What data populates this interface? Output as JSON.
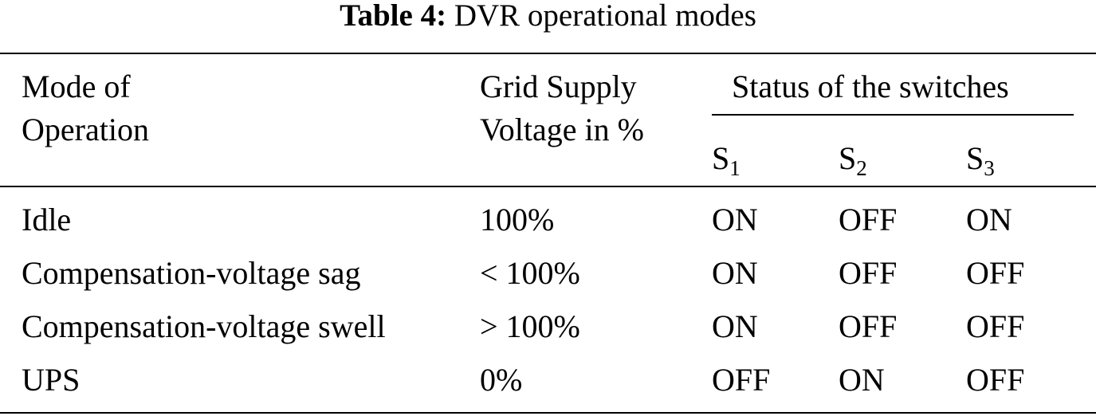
{
  "caption": {
    "label": "Table 4:",
    "text": "DVR operational modes"
  },
  "header": {
    "mode_line1": "Mode of",
    "mode_line2": "Operation",
    "grid_line1": "Grid Supply",
    "grid_line2": "Voltage in %",
    "status_group": "Status of the switches",
    "switches": [
      {
        "base": "S",
        "sub": "1"
      },
      {
        "base": "S",
        "sub": "2"
      },
      {
        "base": "S",
        "sub": "3"
      }
    ]
  },
  "rows": [
    {
      "mode": "Idle",
      "voltage": "100%",
      "s1": "ON",
      "s2": "OFF",
      "s3": "ON"
    },
    {
      "mode": "Compensation-voltage sag",
      "voltage": "< 100%",
      "s1": "ON",
      "s2": "OFF",
      "s3": "OFF"
    },
    {
      "mode": "Compensation-voltage swell",
      "voltage": "> 100%",
      "s1": "ON",
      "s2": "OFF",
      "s3": "OFF"
    },
    {
      "mode": "UPS",
      "voltage": "0%",
      "s1": "OFF",
      "s2": "ON",
      "s3": "OFF"
    }
  ]
}
